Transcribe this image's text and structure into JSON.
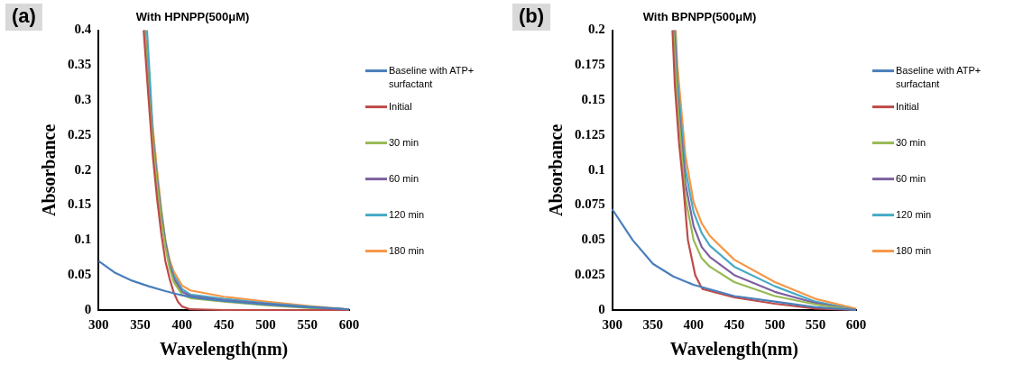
{
  "chart_data": [
    {
      "type": "line",
      "title": "With HPNPP(500μM)",
      "xlabel": "Wavelength(nm)",
      "ylabel": "Absorbance",
      "annotations": [
        "(a)"
      ],
      "xlim": [
        300,
        600
      ],
      "ylim": [
        0,
        0.4
      ],
      "xticks": [
        300,
        350,
        400,
        450,
        500,
        550,
        600
      ],
      "yticks": [
        0,
        0.05,
        0.1,
        0.15,
        0.2,
        0.25,
        0.3,
        0.35,
        0.4
      ],
      "grid": false,
      "legend": "right",
      "marker": "none",
      "line_style": "solid",
      "series": [
        {
          "name": "Baseline with ATP+ surfactant",
          "color": "#4a7ebb",
          "x": [
            300,
            320,
            340,
            360,
            380,
            400,
            420,
            450,
            500,
            550,
            600
          ],
          "values": [
            0.07,
            0.053,
            0.042,
            0.034,
            0.027,
            0.021,
            0.017,
            0.013,
            0.008,
            0.004,
            0.001
          ]
        },
        {
          "name": "Initial",
          "color": "#be4b48",
          "x": [
            354,
            360,
            365,
            370,
            375,
            380,
            385,
            390,
            395,
            400,
            410,
            450,
            600
          ],
          "values": [
            0.4,
            0.3,
            0.22,
            0.16,
            0.11,
            0.07,
            0.045,
            0.025,
            0.012,
            0.005,
            0.001,
            0,
            0
          ]
        },
        {
          "name": "30 min",
          "color": "#98b954",
          "x": [
            355,
            360,
            365,
            370,
            375,
            380,
            385,
            390,
            400,
            410,
            450,
            500,
            550,
            600
          ],
          "values": [
            0.4,
            0.31,
            0.24,
            0.18,
            0.13,
            0.09,
            0.06,
            0.04,
            0.022,
            0.017,
            0.012,
            0.007,
            0.003,
            0
          ]
        },
        {
          "name": "60 min",
          "color": "#7d60a0",
          "x": [
            355,
            360,
            365,
            370,
            375,
            380,
            385,
            390,
            400,
            410,
            450,
            500,
            550,
            600
          ],
          "values": [
            0.4,
            0.315,
            0.245,
            0.185,
            0.135,
            0.095,
            0.065,
            0.045,
            0.026,
            0.02,
            0.014,
            0.009,
            0.004,
            0.001
          ]
        },
        {
          "name": "120 min",
          "color": "#46aac5",
          "x": [
            358,
            362,
            365,
            370,
            375,
            380,
            385,
            390,
            400,
            410,
            450,
            500,
            550,
            600
          ],
          "values": [
            0.4,
            0.32,
            0.25,
            0.19,
            0.14,
            0.098,
            0.068,
            0.05,
            0.03,
            0.022,
            0.016,
            0.01,
            0.005,
            0.001
          ]
        },
        {
          "name": "180 min",
          "color": "#f79646",
          "x": [
            356,
            360,
            365,
            370,
            375,
            380,
            385,
            390,
            400,
            410,
            450,
            500,
            550,
            600
          ],
          "values": [
            0.4,
            0.33,
            0.26,
            0.2,
            0.145,
            0.1,
            0.072,
            0.055,
            0.035,
            0.028,
            0.019,
            0.012,
            0.006,
            0.001
          ]
        }
      ]
    },
    {
      "type": "line",
      "title": "With BPNPP(500μM)",
      "xlabel": "Wavelength(nm)",
      "ylabel": "Absorbance",
      "annotations": [
        "(b)"
      ],
      "xlim": [
        300,
        600
      ],
      "ylim": [
        0,
        0.2
      ],
      "xticks": [
        300,
        350,
        400,
        450,
        500,
        550,
        600
      ],
      "yticks": [
        0,
        0.025,
        0.05,
        0.075,
        0.1,
        0.125,
        0.15,
        0.175,
        0.2
      ],
      "grid": false,
      "legend": "right",
      "marker": "none",
      "line_style": "solid",
      "series": [
        {
          "name": "Baseline with ATP+ surfactant",
          "color": "#4a7ebb",
          "x": [
            300,
            325,
            350,
            375,
            400,
            450,
            500,
            550,
            600
          ],
          "values": [
            0.072,
            0.05,
            0.033,
            0.024,
            0.018,
            0.01,
            0.006,
            0.002,
            0
          ]
        },
        {
          "name": "Initial",
          "color": "#be4b48",
          "x": [
            374,
            377,
            382,
            387,
            393,
            402,
            408,
            411,
            450,
            500,
            550,
            600
          ],
          "values": [
            0.2,
            0.16,
            0.12,
            0.091,
            0.05,
            0.025,
            0.018,
            0.015,
            0.009,
            0.0045,
            0.001,
            0
          ]
        },
        {
          "name": "30 min",
          "color": "#98b954",
          "x": [
            375,
            380,
            390,
            400,
            410,
            420,
            450,
            500,
            550,
            600
          ],
          "values": [
            0.2,
            0.15,
            0.08,
            0.05,
            0.037,
            0.031,
            0.02,
            0.01,
            0.004,
            0
          ]
        },
        {
          "name": "60 min",
          "color": "#7d60a0",
          "x": [
            376,
            380,
            390,
            400,
            410,
            420,
            450,
            500,
            550,
            600
          ],
          "values": [
            0.2,
            0.155,
            0.09,
            0.06,
            0.045,
            0.038,
            0.025,
            0.013,
            0.005,
            0
          ]
        },
        {
          "name": "120 min",
          "color": "#46aac5",
          "x": [
            377,
            380,
            390,
            400,
            410,
            420,
            450,
            500,
            550,
            600
          ],
          "values": [
            0.2,
            0.165,
            0.1,
            0.07,
            0.055,
            0.046,
            0.031,
            0.017,
            0.006,
            0
          ]
        },
        {
          "name": "180 min",
          "color": "#f79646",
          "x": [
            378,
            380,
            390,
            400,
            410,
            420,
            450,
            500,
            550,
            600
          ],
          "values": [
            0.2,
            0.175,
            0.11,
            0.077,
            0.062,
            0.053,
            0.036,
            0.02,
            0.008,
            0.001
          ]
        }
      ]
    }
  ]
}
